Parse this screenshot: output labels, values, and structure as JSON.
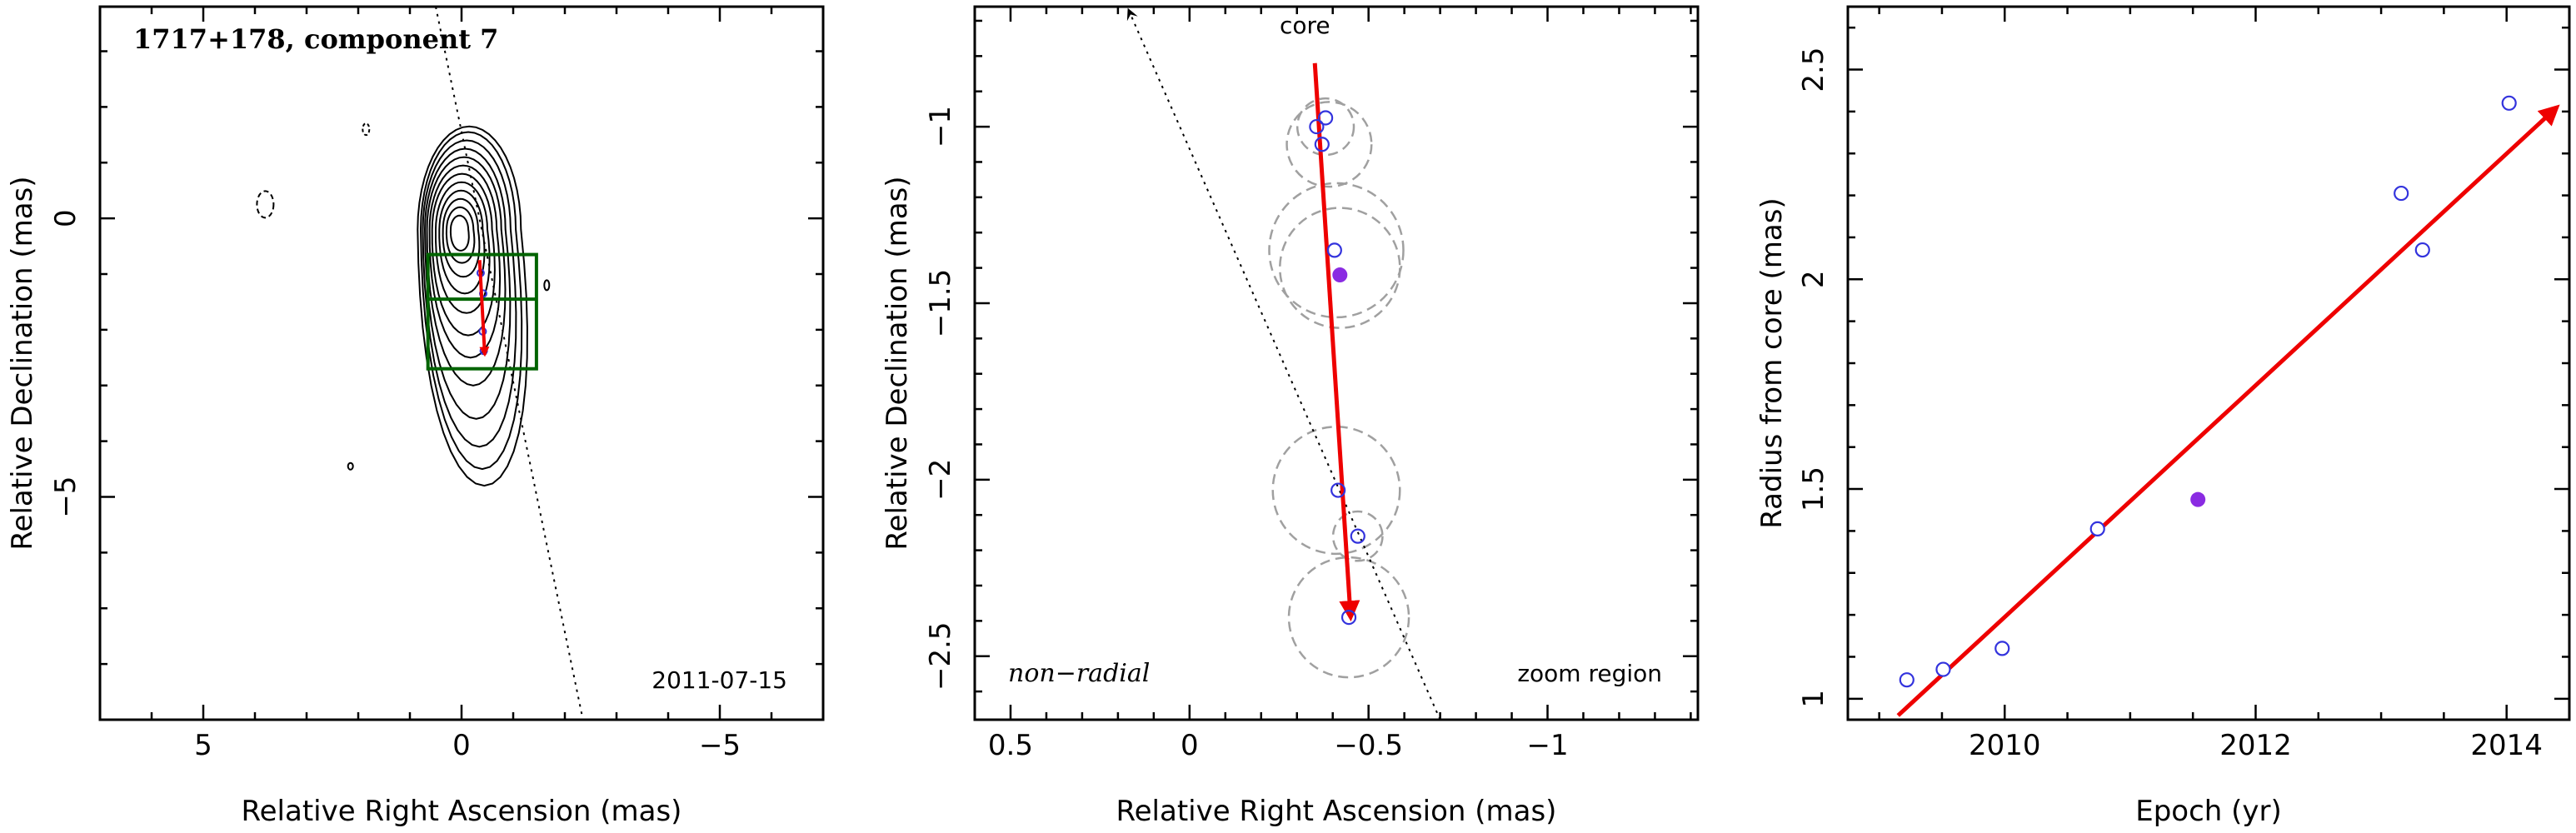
{
  "chart_data": [
    {
      "type": "contour",
      "title": "1717+178, component 7",
      "date_label": "2011-07-15",
      "xlabel": "Relative Right Ascension (mas)",
      "ylabel": "Relative Declination (mas)",
      "xlim": [
        7,
        -7
      ],
      "ylim": [
        -9,
        3.8
      ],
      "x_ticks": [
        5,
        0,
        -5
      ],
      "y_ticks": [
        0,
        -5
      ],
      "x_tick_labels": [
        "5",
        "0",
        "−5"
      ],
      "y_tick_labels": [
        "0",
        "−5"
      ],
      "contour_peak": [
        0.05,
        -0.2
      ],
      "zoom_region": {
        "x_range": [
          0.65,
          -1.45
        ],
        "y_range": [
          -0.65,
          -2.7
        ]
      },
      "zoom_inner_boundary_y": -1.45,
      "trajectory_line": {
        "from": [
          0.5,
          3.8
        ],
        "to": [
          -2.35,
          -9
        ]
      },
      "arrow": {
        "from": [
          -0.35,
          -0.75
        ],
        "to": [
          -0.45,
          -2.45
        ]
      },
      "component_positions": [
        [
          -0.37,
          -0.98
        ],
        [
          -0.42,
          -1.35
        ],
        [
          -0.41,
          -2.03
        ],
        [
          -0.43,
          -2.38
        ]
      ],
      "colors": {
        "contour": "#000000",
        "zoom_box": "#006400",
        "arrow": "#ee0000",
        "marker": "#3333dd"
      }
    },
    {
      "type": "scatter",
      "label_left": "non−radial",
      "label_right": "zoom region",
      "core_label": "core",
      "xlabel": "Relative Right Ascension (mas)",
      "ylabel": "Relative Declination (mas)",
      "xlim": [
        0.6,
        -1.42
      ],
      "ylim": [
        -2.68,
        -0.66
      ],
      "x_ticks": [
        0.5,
        0,
        -0.5,
        -1
      ],
      "y_ticks": [
        -1,
        -1.5,
        -2,
        -2.5
      ],
      "x_tick_labels": [
        "0.5",
        "0",
        "−0.5",
        "−1"
      ],
      "y_tick_labels": [
        "−1",
        "−1.5",
        "−2",
        "−2.5"
      ],
      "points": [
        {
          "x": -0.38,
          "y": -0.975
        },
        {
          "x": -0.355,
          "y": -1.0
        },
        {
          "x": -0.37,
          "y": -1.05
        },
        {
          "x": -0.405,
          "y": -1.35
        },
        {
          "x": -0.415,
          "y": -2.03
        },
        {
          "x": -0.47,
          "y": -2.16
        },
        {
          "x": -0.445,
          "y": -2.39
        }
      ],
      "highlight_point": {
        "x": -0.42,
        "y": -1.42
      },
      "circles": [
        {
          "x": -0.38,
          "y": -1.0,
          "r": 0.08
        },
        {
          "x": -0.39,
          "y": -1.05,
          "r": 0.12
        },
        {
          "x": -0.41,
          "y": -1.35,
          "r": 0.19
        },
        {
          "x": -0.42,
          "y": -1.4,
          "r": 0.17
        },
        {
          "x": -0.41,
          "y": -2.03,
          "r": 0.18
        },
        {
          "x": -0.47,
          "y": -2.16,
          "r": 0.07
        },
        {
          "x": -0.445,
          "y": -2.39,
          "r": 0.17
        }
      ],
      "arrow": {
        "from": [
          -0.35,
          -0.82
        ],
        "to": [
          -0.45,
          -2.39
        ]
      },
      "core_line": {
        "from": [
          0.17,
          -0.67
        ],
        "to": [
          -0.7,
          -2.68
        ]
      },
      "colors": {
        "arrow": "#ee0000",
        "marker": "#3333dd",
        "highlight": "#8a2be2",
        "circle": "#a0a0a0"
      }
    },
    {
      "type": "scatter",
      "xlabel": "Epoch (yr)",
      "ylabel": "Radius from core (mas)",
      "xlim": [
        2008.75,
        2014.5
      ],
      "ylim": [
        0.95,
        2.65
      ],
      "x_ticks": [
        2010,
        2012,
        2014
      ],
      "y_ticks": [
        1,
        1.5,
        2,
        2.5
      ],
      "x_tick_labels": [
        "2010",
        "2012",
        "2014"
      ],
      "y_tick_labels": [
        "1",
        "1.5",
        "2",
        "2.5"
      ],
      "points": [
        {
          "x": 2009.22,
          "y": 1.045
        },
        {
          "x": 2009.51,
          "y": 1.07
        },
        {
          "x": 2009.98,
          "y": 1.12
        },
        {
          "x": 2010.74,
          "y": 1.405
        },
        {
          "x": 2013.16,
          "y": 2.205
        },
        {
          "x": 2013.33,
          "y": 2.07
        },
        {
          "x": 2014.02,
          "y": 2.42
        }
      ],
      "highlight_point": {
        "x": 2011.54,
        "y": 1.475
      },
      "fit_line": {
        "from": [
          2009.15,
          0.96
        ],
        "to": [
          2014.4,
          2.41
        ]
      },
      "colors": {
        "line": "#ee0000",
        "marker": "#3333dd",
        "highlight": "#8a2be2"
      }
    }
  ]
}
